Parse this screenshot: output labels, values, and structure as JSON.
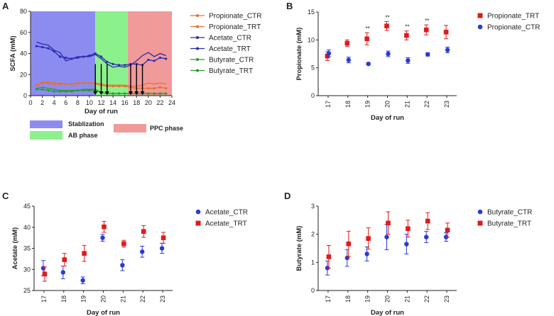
{
  "panels": {
    "A": "A",
    "B": "B",
    "C": "C",
    "D": "D"
  },
  "phases": {
    "stabilization": "Stablization",
    "ab": "AB phase",
    "ppc": "PPC phase",
    "colors": {
      "stabilization": "#8c8cf0",
      "ab": "#8cf08c",
      "ppc": "#f09a9a"
    }
  },
  "chart_data": [
    {
      "id": "A",
      "type": "line",
      "title": "",
      "xlabel": "Day of run",
      "ylabel": "SCFA (mM)",
      "xlim": [
        0,
        24
      ],
      "ylim": [
        0,
        80
      ],
      "xticks": [
        "0",
        "2",
        "4",
        "6",
        "8",
        "10",
        "12",
        "14",
        "16",
        "18",
        "20",
        "22",
        "24"
      ],
      "yticks": [
        "0",
        "20",
        "40",
        "60",
        "80"
      ],
      "phase_bounds": [
        0,
        11,
        16.5,
        24
      ],
      "arrows_x": [
        11,
        12,
        13,
        17,
        18,
        19
      ],
      "series": [
        {
          "name": "Propionate_CTR",
          "color": "#e8702a",
          "marker": "circle",
          "x": [
            1,
            2,
            3,
            4,
            5,
            6,
            7,
            8,
            9,
            10,
            11,
            12,
            13,
            14,
            15,
            16,
            17,
            18,
            19,
            20,
            21,
            22,
            23
          ],
          "y": [
            10,
            12,
            12,
            11,
            11,
            11,
            11,
            12,
            12,
            12,
            11,
            10,
            9,
            9,
            9,
            9,
            8,
            7,
            7,
            7,
            7,
            8,
            7
          ]
        },
        {
          "name": "Propionate_TRT",
          "color": "#e8702a",
          "marker": "none",
          "x": [
            1,
            2,
            3,
            4,
            5,
            6,
            7,
            8,
            9,
            10,
            11,
            12,
            13,
            14,
            15,
            16,
            17,
            18,
            19,
            20,
            21,
            22,
            23
          ],
          "y": [
            10,
            13,
            13,
            12,
            12,
            11,
            11,
            11,
            12,
            12,
            12,
            11,
            10,
            10,
            10,
            10,
            9,
            9,
            10,
            12,
            11,
            12,
            11
          ]
        },
        {
          "name": "Acetate_CTR",
          "color": "#2a2ab0",
          "marker": "circle",
          "x": [
            1,
            2,
            3,
            4,
            5,
            6,
            7,
            8,
            9,
            10,
            11,
            12,
            13,
            14,
            15,
            16,
            17,
            18,
            19,
            20,
            21,
            22,
            23
          ],
          "y": [
            47,
            46,
            45,
            42,
            37,
            36,
            35,
            36,
            37,
            38,
            40,
            37,
            32,
            30,
            29,
            29,
            30,
            30,
            29,
            34,
            33,
            36,
            35
          ]
        },
        {
          "name": "Acetate_TRT",
          "color": "#2a2ab0",
          "marker": "none",
          "x": [
            1,
            2,
            3,
            4,
            5,
            6,
            7,
            8,
            9,
            10,
            11,
            12,
            13,
            14,
            15,
            16,
            17,
            18,
            19,
            20,
            21,
            22,
            23
          ],
          "y": [
            51,
            49,
            48,
            43,
            41,
            33,
            35,
            37,
            37,
            37,
            39,
            35,
            30,
            27,
            28,
            27,
            29,
            33,
            38,
            41,
            37,
            40,
            38
          ]
        },
        {
          "name": "Butyrate_CTR",
          "color": "#2a9a2a",
          "marker": "circle",
          "x": [
            1,
            2,
            3,
            4,
            5,
            6,
            7,
            8,
            9,
            10,
            11,
            12,
            13,
            14,
            15,
            16,
            17,
            18,
            19,
            20,
            21,
            22,
            23
          ],
          "y": [
            6,
            6,
            5,
            4,
            4,
            4,
            4,
            5,
            5,
            5,
            5,
            3,
            2,
            2,
            2,
            2,
            2,
            2,
            2,
            2,
            2,
            2,
            2
          ]
        },
        {
          "name": "Butyrate_TRT",
          "color": "#2a9a2a",
          "marker": "none",
          "x": [
            1,
            2,
            3,
            4,
            5,
            6,
            7,
            8,
            9,
            10,
            11,
            12,
            13,
            14,
            15,
            16,
            17,
            18,
            19,
            20,
            21,
            22,
            23
          ],
          "y": [
            7,
            8,
            7,
            6,
            5,
            5,
            5,
            5,
            6,
            6,
            6,
            3,
            2,
            2,
            2,
            2,
            2,
            2,
            2,
            2,
            2,
            2,
            2
          ]
        }
      ]
    },
    {
      "id": "B",
      "type": "scatter",
      "title": "",
      "xlabel": "Day of run",
      "ylabel": "Propionate (mM)",
      "categories": [
        "17",
        "18",
        "19",
        "20",
        "21",
        "22",
        "23"
      ],
      "ylim": [
        0,
        15
      ],
      "yticks": [
        "0",
        "5",
        "10",
        "15"
      ],
      "series": [
        {
          "name": "Propionate_TRT",
          "color": "#e01b1b",
          "marker": "square",
          "values": [
            7.1,
            9.4,
            10.2,
            12.5,
            10.8,
            11.8,
            11.4
          ],
          "errors": [
            0.8,
            0.6,
            1.1,
            0.8,
            0.8,
            0.9,
            1.2
          ]
        },
        {
          "name": "Propionate_CTR",
          "color": "#2a3ad8",
          "marker": "circle",
          "values": [
            7.6,
            6.4,
            5.7,
            7.5,
            6.3,
            7.4,
            8.2
          ],
          "errors": [
            0.6,
            0.5,
            0.2,
            0.5,
            0.5,
            0.3,
            0.5
          ]
        }
      ],
      "annotations": [
        "",
        "",
        "**",
        "**",
        "**",
        "**",
        ""
      ]
    },
    {
      "id": "C",
      "type": "scatter",
      "title": "",
      "xlabel": "Day of run",
      "ylabel": "Acetate (mM)",
      "categories": [
        "17",
        "18",
        "19",
        "20",
        "21",
        "22",
        "23"
      ],
      "ylim": [
        25,
        45
      ],
      "yticks": [
        "25",
        "30",
        "35",
        "40",
        "45"
      ],
      "series": [
        {
          "name": "Acetate_CTR",
          "color": "#2a3ad8",
          "marker": "circle",
          "values": [
            30.3,
            29.3,
            27.4,
            37.5,
            31.0,
            34.2,
            35.0
          ],
          "errors": [
            1.8,
            1.5,
            0.8,
            0.8,
            1.3,
            1.3,
            1.2
          ]
        },
        {
          "name": "Acetate_TRT",
          "color": "#e01b1b",
          "marker": "square",
          "values": [
            28.9,
            32.3,
            33.8,
            40.1,
            36.1,
            39.0,
            37.5
          ],
          "errors": [
            1.7,
            1.5,
            1.9,
            1.3,
            0.8,
            1.4,
            1.3
          ]
        }
      ]
    },
    {
      "id": "D",
      "type": "scatter",
      "title": "",
      "xlabel": "Day of run",
      "ylabel": "Butyrate (mM)",
      "categories": [
        "17",
        "18",
        "19",
        "20",
        "21",
        "22",
        "23"
      ],
      "ylim": [
        0,
        3
      ],
      "yticks": [
        "0",
        "1",
        "2",
        "3"
      ],
      "series": [
        {
          "name": "Butyrate_CTR",
          "color": "#2a3ad8",
          "marker": "circle",
          "values": [
            0.8,
            1.16,
            1.3,
            1.9,
            1.65,
            1.9,
            1.9
          ],
          "errors": [
            0.25,
            0.3,
            0.25,
            0.45,
            0.35,
            0.2,
            0.15
          ]
        },
        {
          "name": "Butyrate_TRT",
          "color": "#e01b1b",
          "marker": "square",
          "values": [
            1.2,
            1.66,
            1.85,
            2.4,
            2.2,
            2.47,
            2.15
          ],
          "errors": [
            0.4,
            0.45,
            0.38,
            0.4,
            0.3,
            0.3,
            0.25
          ]
        }
      ]
    }
  ]
}
